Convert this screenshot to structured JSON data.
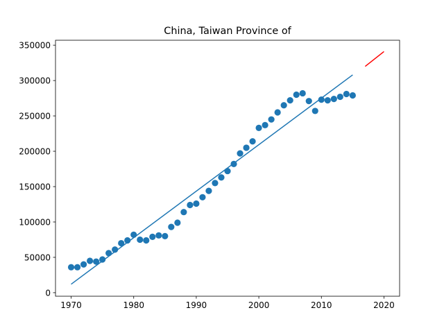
{
  "chart_data": {
    "type": "scatter",
    "title": "China, Taiwan Province of",
    "xlabel": "",
    "ylabel": "",
    "xlim": [
      1967.5,
      2022.5
    ],
    "ylim": [
      -5000,
      357000
    ],
    "x_ticks": [
      1970,
      1980,
      1990,
      2000,
      2010,
      2020
    ],
    "y_ticks": [
      0,
      50000,
      100000,
      150000,
      200000,
      250000,
      300000,
      350000
    ],
    "grid": false,
    "series": [
      {
        "kind": "scatter",
        "color": "#1f77b4",
        "x": [
          1970,
          1971,
          1972,
          1973,
          1974,
          1975,
          1976,
          1977,
          1978,
          1979,
          1980,
          1981,
          1982,
          1983,
          1984,
          1985,
          1986,
          1987,
          1988,
          1989,
          1990,
          1991,
          1992,
          1993,
          1994,
          1995,
          1996,
          1997,
          1998,
          1999,
          2000,
          2001,
          2002,
          2003,
          2004,
          2005,
          2006,
          2007,
          2008,
          2009,
          2010,
          2011,
          2012,
          2013,
          2014,
          2015
        ],
        "y": [
          36000,
          36000,
          40000,
          45000,
          44000,
          47000,
          56000,
          61000,
          70000,
          74000,
          82000,
          75000,
          74000,
          79000,
          81000,
          80000,
          93000,
          99000,
          114000,
          124000,
          126000,
          135000,
          144000,
          155000,
          163000,
          172000,
          182000,
          197000,
          205000,
          214000,
          233000,
          237000,
          245000,
          255000,
          265000,
          272000,
          280000,
          282000,
          271000,
          257000,
          273000,
          272000,
          274000,
          277000,
          281000,
          279000
        ]
      },
      {
        "kind": "line",
        "color": "#1f77b4",
        "x": [
          1970,
          2015
        ],
        "y": [
          12000,
          308000
        ]
      },
      {
        "kind": "line",
        "color": "#ff0000",
        "x": [
          2017,
          2020
        ],
        "y": [
          320000,
          341000
        ]
      }
    ]
  }
}
